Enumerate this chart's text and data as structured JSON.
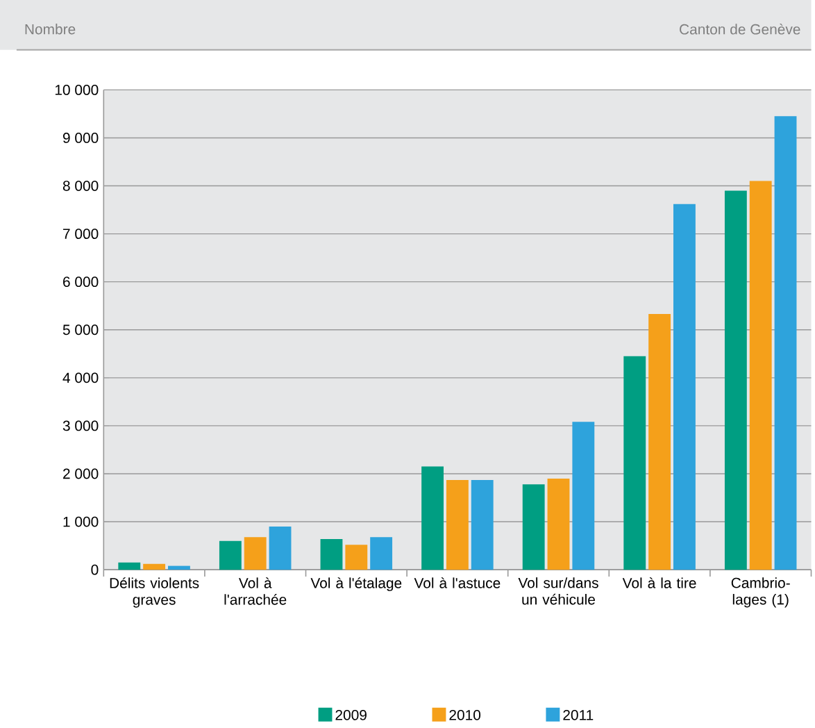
{
  "chart_data": {
    "type": "bar",
    "subtitle": "Canton de Genève",
    "ylabel": "Nombre",
    "categories": [
      "Délits violents graves",
      "Vol à l'arrachée",
      "Vol à l'étalage",
      "Vol à l'astuce",
      "Vol sur/dans un véhicule",
      "Vol à la tire",
      "Cambrio-lages (1)"
    ],
    "series": [
      {
        "name": "2009",
        "color": "#009e82",
        "values": [
          150,
          600,
          640,
          2150,
          1780,
          4450,
          7900
        ]
      },
      {
        "name": "2010",
        "color": "#f5a01a",
        "values": [
          120,
          680,
          520,
          1870,
          1900,
          5330,
          8100
        ]
      },
      {
        "name": "2011",
        "color": "#2ea3dc",
        "values": [
          80,
          900,
          680,
          1870,
          3080,
          7620,
          9450
        ]
      }
    ],
    "ylim": [
      0,
      10000
    ],
    "yticks": [
      0,
      {
        "value": 1000,
        "label": "1 000"
      },
      {
        "value": 2000,
        "label": "2 000"
      },
      {
        "value": 3000,
        "label": "3 000"
      },
      {
        "value": 4000,
        "label": "4 000"
      },
      {
        "value": 5000,
        "label": "5 000"
      },
      {
        "value": 6000,
        "label": "6 000"
      },
      {
        "value": 7000,
        "label": "7 000"
      },
      {
        "value": 8000,
        "label": "8 000"
      },
      {
        "value": 9000,
        "label": "9 000"
      },
      {
        "value": 10000,
        "label": "10 000"
      }
    ],
    "grid": "y",
    "legend": "bottom"
  }
}
